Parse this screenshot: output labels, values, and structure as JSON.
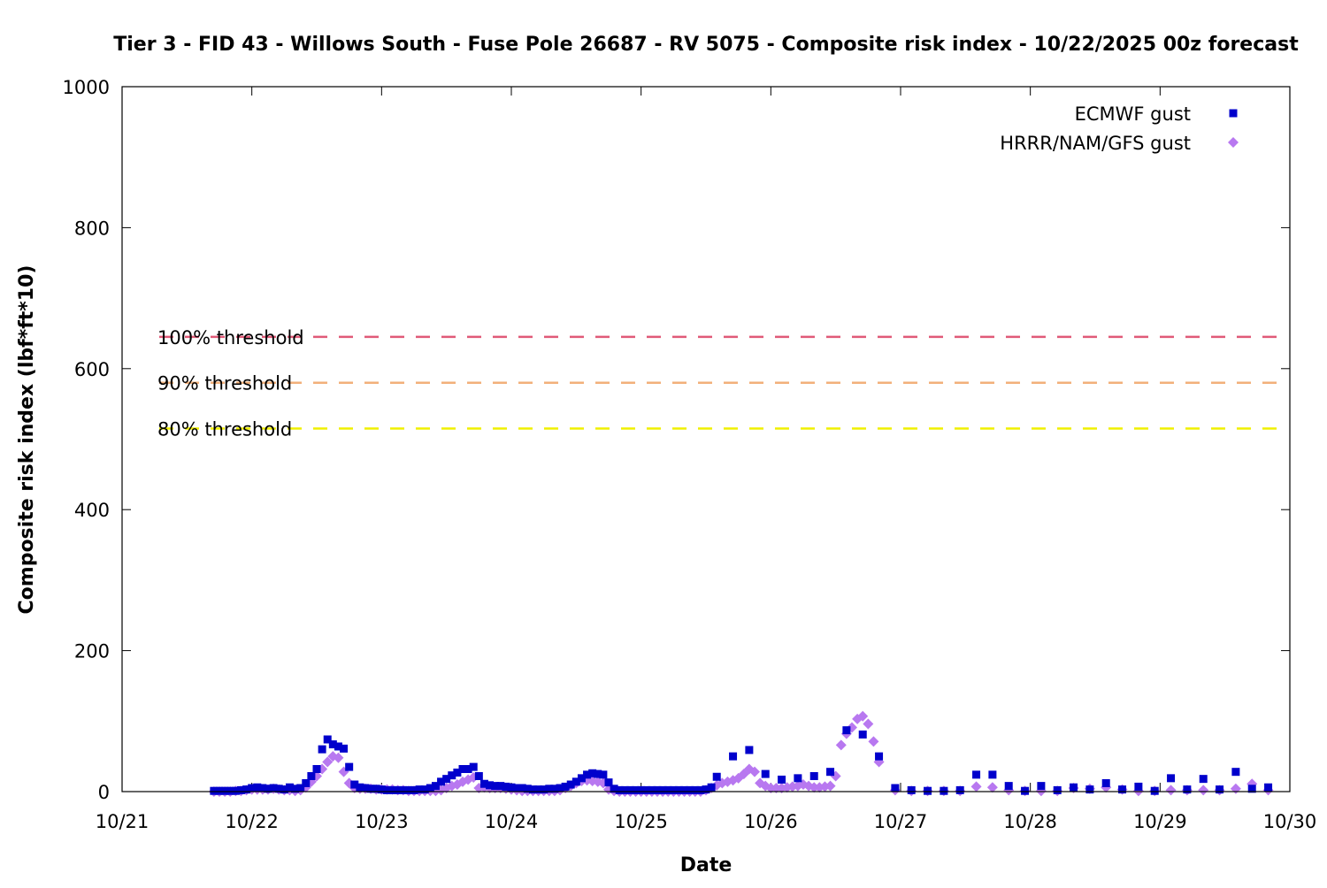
{
  "chart_data": {
    "type": "scatter",
    "title": "Tier 3 - FID 43 - Willows South - Fuse Pole 26687 - RV 5075 - Composite risk index - 10/22/2025 00z forecast",
    "xlabel": "Date",
    "ylabel": "Composite risk index (lbf*ft*10)",
    "xlim": [
      "10/21",
      "10/30"
    ],
    "ylim": [
      0,
      1000
    ],
    "x_ticks": [
      "10/21",
      "10/22",
      "10/23",
      "10/24",
      "10/25",
      "10/26",
      "10/27",
      "10/28",
      "10/29",
      "10/30"
    ],
    "y_ticks": [
      0,
      200,
      400,
      600,
      800,
      1000
    ],
    "grid": false,
    "legend_position": "top-right",
    "thresholds": [
      {
        "label": "100% threshold",
        "value": 645,
        "color": "#e05a78"
      },
      {
        "label": "90% threshold",
        "value": 580,
        "color": "#f2b07a"
      },
      {
        "label": "80% threshold",
        "value": 515,
        "color": "#f0f000"
      }
    ],
    "series": [
      {
        "name": "ECMWF gust",
        "marker": "square",
        "color": "#0000cc",
        "points": [
          [
            "10/21 17:00",
            1
          ],
          [
            "10/21 18:00",
            1
          ],
          [
            "10/21 19:00",
            1
          ],
          [
            "10/21 20:00",
            1
          ],
          [
            "10/21 21:00",
            1
          ],
          [
            "10/21 22:00",
            2
          ],
          [
            "10/21 23:00",
            3
          ],
          [
            "10/22 00:00",
            5
          ],
          [
            "10/22 01:00",
            6
          ],
          [
            "10/22 02:00",
            5
          ],
          [
            "10/22 03:00",
            4
          ],
          [
            "10/22 04:00",
            5
          ],
          [
            "10/22 05:00",
            4
          ],
          [
            "10/22 06:00",
            3
          ],
          [
            "10/22 07:00",
            6
          ],
          [
            "10/22 08:00",
            4
          ],
          [
            "10/22 09:00",
            5
          ],
          [
            "10/22 10:00",
            12
          ],
          [
            "10/22 11:00",
            22
          ],
          [
            "10/22 12:00",
            32
          ],
          [
            "10/22 13:00",
            60
          ],
          [
            "10/22 14:00",
            74
          ],
          [
            "10/22 15:00",
            67
          ],
          [
            "10/22 16:00",
            64
          ],
          [
            "10/22 17:00",
            61
          ],
          [
            "10/22 18:00",
            35
          ],
          [
            "10/22 19:00",
            10
          ],
          [
            "10/22 20:00",
            6
          ],
          [
            "10/22 21:00",
            5
          ],
          [
            "10/22 22:00",
            4
          ],
          [
            "10/22 23:00",
            4
          ],
          [
            "10/23 00:00",
            3
          ],
          [
            "10/23 01:00",
            2
          ],
          [
            "10/23 02:00",
            2
          ],
          [
            "10/23 03:00",
            2
          ],
          [
            "10/23 04:00",
            2
          ],
          [
            "10/23 05:00",
            2
          ],
          [
            "10/23 06:00",
            2
          ],
          [
            "10/23 07:00",
            3
          ],
          [
            "10/23 08:00",
            3
          ],
          [
            "10/23 09:00",
            5
          ],
          [
            "10/23 10:00",
            8
          ],
          [
            "10/23 11:00",
            14
          ],
          [
            "10/23 12:00",
            18
          ],
          [
            "10/23 13:00",
            23
          ],
          [
            "10/23 14:00",
            27
          ],
          [
            "10/23 15:00",
            32
          ],
          [
            "10/23 16:00",
            32
          ],
          [
            "10/23 17:00",
            35
          ],
          [
            "10/23 18:00",
            22
          ],
          [
            "10/23 19:00",
            11
          ],
          [
            "10/23 20:00",
            9
          ],
          [
            "10/23 21:00",
            8
          ],
          [
            "10/23 22:00",
            8
          ],
          [
            "10/23 23:00",
            7
          ],
          [
            "10/24 00:00",
            6
          ],
          [
            "10/24 01:00",
            5
          ],
          [
            "10/24 02:00",
            5
          ],
          [
            "10/24 03:00",
            4
          ],
          [
            "10/24 04:00",
            3
          ],
          [
            "10/24 05:00",
            3
          ],
          [
            "10/24 06:00",
            3
          ],
          [
            "10/24 07:00",
            4
          ],
          [
            "10/24 08:00",
            4
          ],
          [
            "10/24 09:00",
            5
          ],
          [
            "10/24 10:00",
            7
          ],
          [
            "10/24 11:00",
            10
          ],
          [
            "10/24 12:00",
            14
          ],
          [
            "10/24 13:00",
            19
          ],
          [
            "10/24 14:00",
            24
          ],
          [
            "10/24 15:00",
            26
          ],
          [
            "10/24 16:00",
            25
          ],
          [
            "10/24 17:00",
            24
          ],
          [
            "10/24 18:00",
            13
          ],
          [
            "10/24 19:00",
            4
          ],
          [
            "10/24 20:00",
            2
          ],
          [
            "10/24 21:00",
            2
          ],
          [
            "10/24 22:00",
            2
          ],
          [
            "10/24 23:00",
            2
          ],
          [
            "10/25 00:00",
            2
          ],
          [
            "10/25 01:00",
            2
          ],
          [
            "10/25 02:00",
            2
          ],
          [
            "10/25 03:00",
            2
          ],
          [
            "10/25 04:00",
            2
          ],
          [
            "10/25 05:00",
            2
          ],
          [
            "10/25 06:00",
            2
          ],
          [
            "10/25 07:00",
            2
          ],
          [
            "10/25 08:00",
            2
          ],
          [
            "10/25 09:00",
            2
          ],
          [
            "10/25 10:00",
            2
          ],
          [
            "10/25 11:00",
            2
          ],
          [
            "10/25 12:00",
            3
          ],
          [
            "10/25 13:00",
            6
          ],
          [
            "10/25 14:00",
            21
          ],
          [
            "10/25 17:00",
            50
          ],
          [
            "10/25 20:00",
            59
          ],
          [
            "10/25 23:00",
            25
          ],
          [
            "10/26 02:00",
            17
          ],
          [
            "10/26 05:00",
            19
          ],
          [
            "10/26 08:00",
            22
          ],
          [
            "10/26 11:00",
            28
          ],
          [
            "10/26 14:00",
            87
          ],
          [
            "10/26 17:00",
            81
          ],
          [
            "10/26 20:00",
            50
          ],
          [
            "10/26 23:00",
            5
          ],
          [
            "10/27 02:00",
            2
          ],
          [
            "10/27 05:00",
            1
          ],
          [
            "10/27 08:00",
            1
          ],
          [
            "10/27 11:00",
            2
          ],
          [
            "10/27 14:00",
            24
          ],
          [
            "10/27 17:00",
            24
          ],
          [
            "10/27 20:00",
            8
          ],
          [
            "10/27 23:00",
            1
          ],
          [
            "10/28 02:00",
            8
          ],
          [
            "10/28 05:00",
            2
          ],
          [
            "10/28 08:00",
            6
          ],
          [
            "10/28 11:00",
            3
          ],
          [
            "10/28 14:00",
            12
          ],
          [
            "10/28 17:00",
            3
          ],
          [
            "10/28 20:00",
            7
          ],
          [
            "10/28 23:00",
            1
          ],
          [
            "10/29 02:00",
            19
          ],
          [
            "10/29 05:00",
            3
          ],
          [
            "10/29 08:00",
            18
          ],
          [
            "10/29 11:00",
            3
          ],
          [
            "10/29 14:00",
            28
          ],
          [
            "10/29 17:00",
            4
          ],
          [
            "10/29 20:00",
            6
          ]
        ]
      },
      {
        "name": "HRRR/NAM/GFS gust",
        "marker": "diamond",
        "color": "#b878f0",
        "points": [
          [
            "10/21 17:00",
            0
          ],
          [
            "10/21 18:00",
            0
          ],
          [
            "10/21 19:00",
            0
          ],
          [
            "10/21 20:00",
            0
          ],
          [
            "10/21 21:00",
            1
          ],
          [
            "10/21 22:00",
            1
          ],
          [
            "10/21 23:00",
            2
          ],
          [
            "10/22 00:00",
            3
          ],
          [
            "10/22 01:00",
            3
          ],
          [
            "10/22 02:00",
            3
          ],
          [
            "10/22 03:00",
            3
          ],
          [
            "10/22 04:00",
            4
          ],
          [
            "10/22 05:00",
            3
          ],
          [
            "10/22 06:00",
            2
          ],
          [
            "10/22 07:00",
            2
          ],
          [
            "10/22 08:00",
            1
          ],
          [
            "10/22 09:00",
            2
          ],
          [
            "10/22 10:00",
            6
          ],
          [
            "10/22 11:00",
            14
          ],
          [
            "10/22 12:00",
            22
          ],
          [
            "10/22 13:00",
            32
          ],
          [
            "10/22 14:00",
            42
          ],
          [
            "10/22 15:00",
            50
          ],
          [
            "10/22 16:00",
            48
          ],
          [
            "10/22 17:00",
            28
          ],
          [
            "10/22 18:00",
            12
          ],
          [
            "10/22 19:00",
            5
          ],
          [
            "10/22 20:00",
            4
          ],
          [
            "10/22 21:00",
            4
          ],
          [
            "10/22 22:00",
            4
          ],
          [
            "10/22 23:00",
            3
          ],
          [
            "10/23 00:00",
            3
          ],
          [
            "10/23 01:00",
            3
          ],
          [
            "10/23 02:00",
            3
          ],
          [
            "10/23 03:00",
            2
          ],
          [
            "10/23 04:00",
            2
          ],
          [
            "10/23 05:00",
            1
          ],
          [
            "10/23 06:00",
            1
          ],
          [
            "10/23 07:00",
            1
          ],
          [
            "10/23 08:00",
            1
          ],
          [
            "10/23 09:00",
            1
          ],
          [
            "10/23 10:00",
            1
          ],
          [
            "10/23 11:00",
            2
          ],
          [
            "10/23 12:00",
            5
          ],
          [
            "10/23 13:00",
            8
          ],
          [
            "10/23 14:00",
            10
          ],
          [
            "10/23 15:00",
            14
          ],
          [
            "10/23 16:00",
            17
          ],
          [
            "10/23 17:00",
            20
          ],
          [
            "10/23 18:00",
            5
          ],
          [
            "10/23 19:00",
            6
          ],
          [
            "10/23 20:00",
            5
          ],
          [
            "10/23 21:00",
            5
          ],
          [
            "10/23 22:00",
            5
          ],
          [
            "10/23 23:00",
            4
          ],
          [
            "10/24 00:00",
            3
          ],
          [
            "10/24 01:00",
            2
          ],
          [
            "10/24 02:00",
            1
          ],
          [
            "10/24 03:00",
            1
          ],
          [
            "10/24 04:00",
            1
          ],
          [
            "10/24 05:00",
            1
          ],
          [
            "10/24 06:00",
            1
          ],
          [
            "10/24 07:00",
            1
          ],
          [
            "10/24 08:00",
            1
          ],
          [
            "10/24 09:00",
            2
          ],
          [
            "10/24 10:00",
            5
          ],
          [
            "10/24 11:00",
            8
          ],
          [
            "10/24 12:00",
            12
          ],
          [
            "10/24 13:00",
            15
          ],
          [
            "10/24 14:00",
            16
          ],
          [
            "10/24 15:00",
            15
          ],
          [
            "10/24 16:00",
            14
          ],
          [
            "10/24 17:00",
            12
          ],
          [
            "10/24 18:00",
            3
          ],
          [
            "10/24 19:00",
            1
          ],
          [
            "10/24 20:00",
            0
          ],
          [
            "10/24 21:00",
            0
          ],
          [
            "10/24 22:00",
            0
          ],
          [
            "10/24 23:00",
            0
          ],
          [
            "10/25 00:00",
            0
          ],
          [
            "10/25 01:00",
            0
          ],
          [
            "10/25 02:00",
            0
          ],
          [
            "10/25 03:00",
            0
          ],
          [
            "10/25 04:00",
            0
          ],
          [
            "10/25 05:00",
            0
          ],
          [
            "10/25 06:00",
            0
          ],
          [
            "10/25 07:00",
            0
          ],
          [
            "10/25 08:00",
            0
          ],
          [
            "10/25 09:00",
            0
          ],
          [
            "10/25 10:00",
            0
          ],
          [
            "10/25 11:00",
            0
          ],
          [
            "10/25 12:00",
            2
          ],
          [
            "10/25 13:00",
            5
          ],
          [
            "10/25 14:00",
            9
          ],
          [
            "10/25 15:00",
            12
          ],
          [
            "10/25 16:00",
            14
          ],
          [
            "10/25 17:00",
            16
          ],
          [
            "10/25 18:00",
            19
          ],
          [
            "10/25 19:00",
            25
          ],
          [
            "10/25 20:00",
            32
          ],
          [
            "10/25 21:00",
            28
          ],
          [
            "10/25 22:00",
            12
          ],
          [
            "10/25 23:00",
            8
          ],
          [
            "10/26 00:00",
            5
          ],
          [
            "10/26 01:00",
            5
          ],
          [
            "10/26 02:00",
            5
          ],
          [
            "10/26 03:00",
            6
          ],
          [
            "10/26 04:00",
            7
          ],
          [
            "10/26 05:00",
            8
          ],
          [
            "10/26 06:00",
            10
          ],
          [
            "10/26 07:00",
            8
          ],
          [
            "10/26 08:00",
            6
          ],
          [
            "10/26 09:00",
            6
          ],
          [
            "10/26 10:00",
            7
          ],
          [
            "10/26 11:00",
            8
          ],
          [
            "10/26 12:00",
            22
          ],
          [
            "10/26 13:00",
            66
          ],
          [
            "10/26 14:00",
            82
          ],
          [
            "10/26 15:00",
            91
          ],
          [
            "10/26 16:00",
            103
          ],
          [
            "10/26 17:00",
            107
          ],
          [
            "10/26 18:00",
            96
          ],
          [
            "10/26 19:00",
            71
          ],
          [
            "10/26 20:00",
            42
          ],
          [
            "10/26 23:00",
            2
          ],
          [
            "10/27 02:00",
            1
          ],
          [
            "10/27 05:00",
            1
          ],
          [
            "10/27 08:00",
            1
          ],
          [
            "10/27 11:00",
            1
          ],
          [
            "10/27 14:00",
            7
          ],
          [
            "10/27 17:00",
            6
          ],
          [
            "10/27 20:00",
            2
          ],
          [
            "10/27 23:00",
            1
          ],
          [
            "10/28 02:00",
            1
          ],
          [
            "10/28 05:00",
            1
          ],
          [
            "10/28 08:00",
            5
          ],
          [
            "10/28 11:00",
            4
          ],
          [
            "10/28 14:00",
            6
          ],
          [
            "10/28 17:00",
            3
          ],
          [
            "10/28 20:00",
            1
          ],
          [
            "10/28 23:00",
            1
          ],
          [
            "10/29 02:00",
            2
          ],
          [
            "10/29 05:00",
            2
          ],
          [
            "10/29 08:00",
            2
          ],
          [
            "10/29 11:00",
            2
          ],
          [
            "10/29 14:00",
            4
          ],
          [
            "10/29 17:00",
            11
          ],
          [
            "10/29 20:00",
            2
          ]
        ]
      }
    ]
  }
}
